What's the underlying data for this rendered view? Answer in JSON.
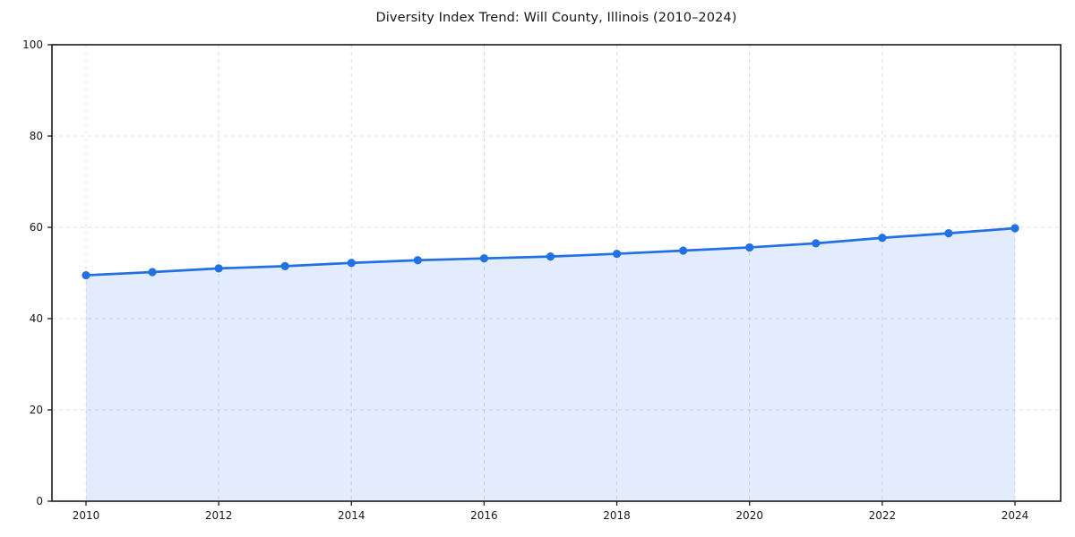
{
  "chart_data": {
    "type": "area",
    "title": "Diversity Index Trend: Will County, Illinois (2010–2024)",
    "x": [
      2010,
      2011,
      2012,
      2013,
      2014,
      2015,
      2016,
      2017,
      2018,
      2019,
      2020,
      2021,
      2022,
      2023,
      2024
    ],
    "values": [
      49.5,
      50.2,
      51.0,
      51.5,
      52.2,
      52.8,
      53.2,
      53.6,
      54.2,
      54.9,
      55.6,
      56.5,
      57.7,
      58.7,
      59.8
    ],
    "series_label": "Diversity Index",
    "xlabel": "",
    "ylabel": "",
    "ylim": [
      0,
      100
    ],
    "y_ticks": [
      0,
      20,
      40,
      60,
      80,
      100
    ],
    "x_tick_labels": [
      2010,
      2012,
      2014,
      2016,
      2018,
      2020,
      2022,
      2024
    ],
    "grid": true,
    "grid_style": "dashed",
    "legend": "none",
    "marker": "circle",
    "colors": {
      "line": "#2170e4",
      "marker": "#2170e4",
      "area_fill": "rgba(33, 112, 228, 0.13)",
      "grid": "#dcdcdc",
      "axis": "#1a1a1a",
      "tick_text": "#1a1a1a",
      "background": "#ffffff"
    }
  }
}
